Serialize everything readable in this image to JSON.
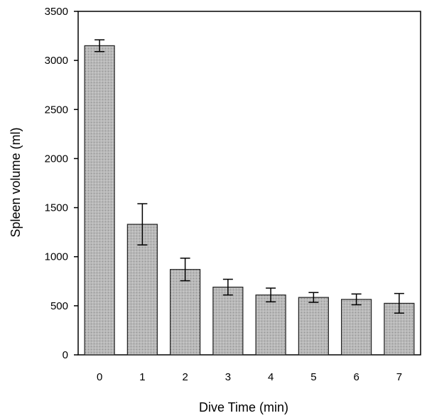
{
  "chart_data": {
    "type": "bar",
    "xlabel": "Dive Time (min)",
    "ylabel": "Spleen volume (ml)",
    "categories": [
      "0",
      "1",
      "2",
      "3",
      "4",
      "5",
      "6",
      "7"
    ],
    "values": [
      3150,
      1330,
      870,
      690,
      610,
      585,
      565,
      525
    ],
    "errors": [
      60,
      210,
      115,
      80,
      70,
      50,
      55,
      100
    ],
    "ylim": [
      0,
      3500
    ],
    "yticks": [
      0,
      500,
      1000,
      1500,
      2000,
      2500,
      3000,
      3500
    ],
    "grid": false,
    "bar_color": "#b8b8b8",
    "bar_edge_color": "#222222"
  }
}
